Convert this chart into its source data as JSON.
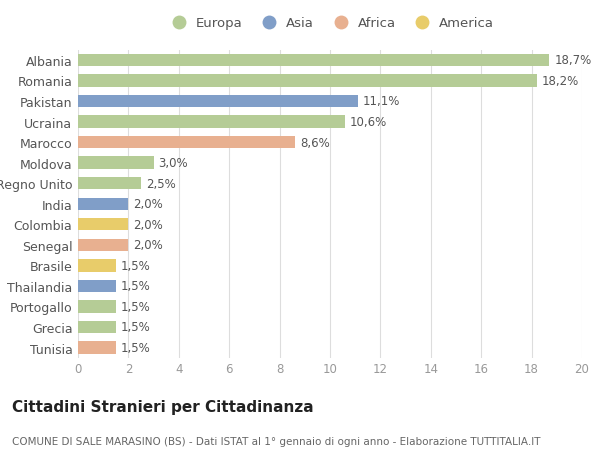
{
  "countries": [
    "Albania",
    "Romania",
    "Pakistan",
    "Ucraina",
    "Marocco",
    "Moldova",
    "Regno Unito",
    "India",
    "Colombia",
    "Senegal",
    "Brasile",
    "Thailandia",
    "Portogallo",
    "Grecia",
    "Tunisia"
  ],
  "values": [
    18.7,
    18.2,
    11.1,
    10.6,
    8.6,
    3.0,
    2.5,
    2.0,
    2.0,
    2.0,
    1.5,
    1.5,
    1.5,
    1.5,
    1.5
  ],
  "labels": [
    "18,7%",
    "18,2%",
    "11,1%",
    "10,6%",
    "8,6%",
    "3,0%",
    "2,5%",
    "2,0%",
    "2,0%",
    "2,0%",
    "1,5%",
    "1,5%",
    "1,5%",
    "1,5%",
    "1,5%"
  ],
  "continents": [
    "Europa",
    "Europa",
    "Asia",
    "Europa",
    "Africa",
    "Europa",
    "Europa",
    "Asia",
    "America",
    "Africa",
    "America",
    "Asia",
    "Europa",
    "Europa",
    "Africa"
  ],
  "colors": {
    "Europa": "#b5cc96",
    "Asia": "#809ec8",
    "Africa": "#e8b090",
    "America": "#e8cc6a"
  },
  "legend_labels": [
    "Europa",
    "Asia",
    "Africa",
    "America"
  ],
  "legend_colors": [
    "#b5cc96",
    "#809ec8",
    "#e8b090",
    "#e8cc6a"
  ],
  "title": "Cittadini Stranieri per Cittadinanza",
  "subtitle": "COMUNE DI SALE MARASINO (BS) - Dati ISTAT al 1° gennaio di ogni anno - Elaborazione TUTTITALIA.IT",
  "xlim": [
    0,
    20
  ],
  "xticks": [
    0,
    2,
    4,
    6,
    8,
    10,
    12,
    14,
    16,
    18,
    20
  ],
  "bg_color": "#ffffff",
  "plot_bg_color": "#ffffff",
  "bar_height": 0.6,
  "label_fontsize": 8.5,
  "ylabel_fontsize": 9,
  "xlabel_fontsize": 8.5,
  "title_fontsize": 11,
  "subtitle_fontsize": 7.5
}
